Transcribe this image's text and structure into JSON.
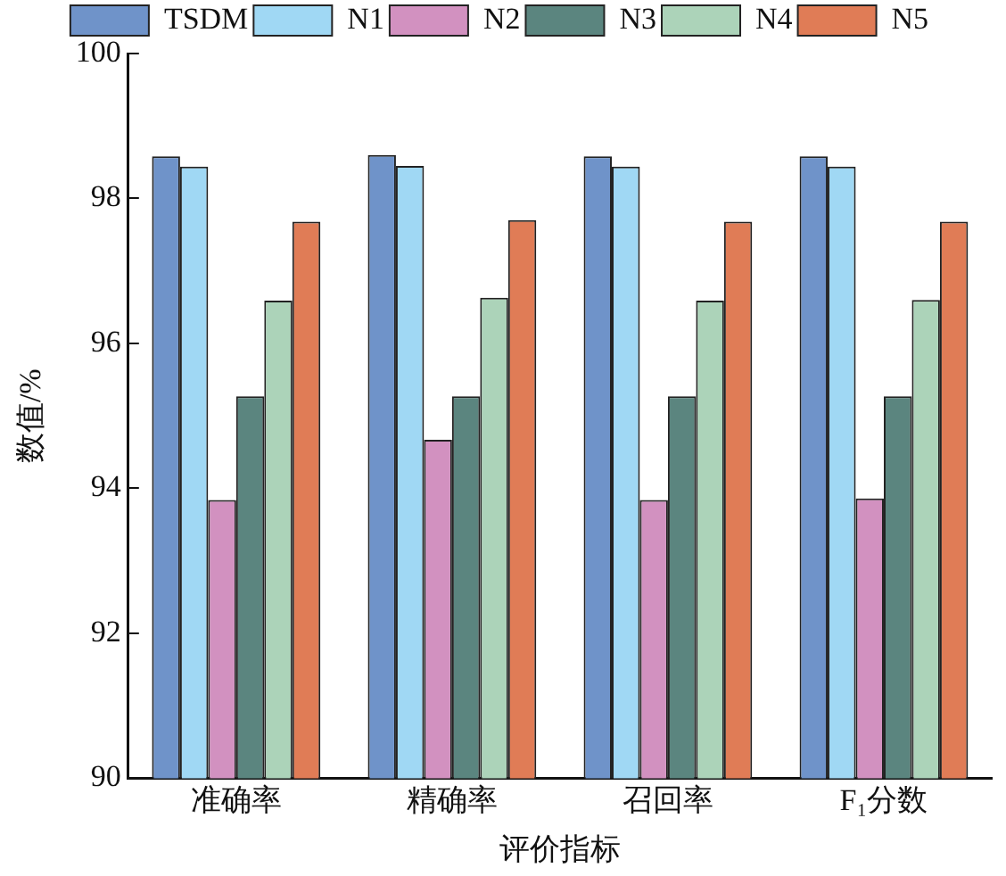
{
  "chart_data": {
    "type": "bar",
    "xlabel": "评价指标",
    "ylabel": "数值/%",
    "categories": [
      "准确率",
      "精确率",
      "召回率",
      "F₁分数"
    ],
    "series": [
      {
        "name": "TSDM",
        "color": "#6f93c9",
        "values": [
          98.58,
          98.6,
          98.58,
          98.58
        ]
      },
      {
        "name": "N1",
        "color": "#a0d8f4",
        "values": [
          98.44,
          98.45,
          98.44,
          98.44
        ]
      },
      {
        "name": "N2",
        "color": "#d291c0",
        "values": [
          93.84,
          94.67,
          93.84,
          93.86
        ]
      },
      {
        "name": "N3",
        "color": "#5b857f",
        "values": [
          95.27,
          95.27,
          95.27,
          95.27
        ]
      },
      {
        "name": "N4",
        "color": "#acd3b9",
        "values": [
          96.59,
          96.63,
          96.59,
          96.6
        ]
      },
      {
        "name": "N5",
        "color": "#e07c56",
        "values": [
          97.68,
          97.7,
          97.68,
          97.68
        ]
      }
    ],
    "ylim": [
      90,
      100
    ],
    "yticks": [
      90,
      92,
      94,
      96,
      98,
      100
    ],
    "grid": false,
    "legend": "top"
  }
}
